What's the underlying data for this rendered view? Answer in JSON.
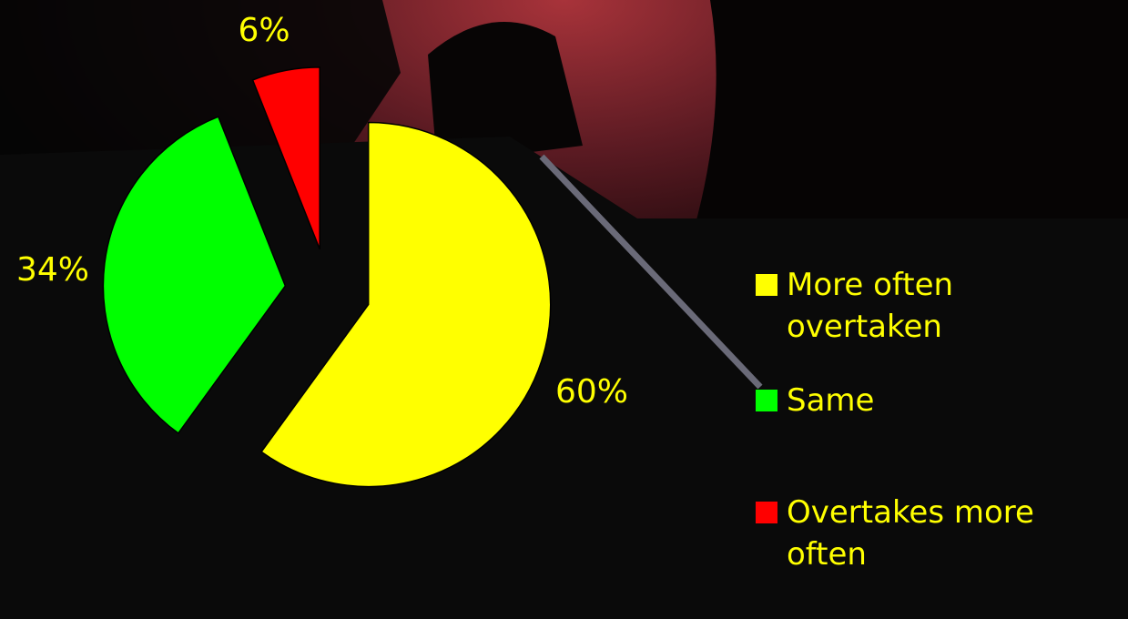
{
  "chart_data": {
    "type": "pie",
    "categories": [
      "More often overtaken",
      "Same",
      "Overtakes more often"
    ],
    "values": [
      60,
      34,
      6
    ],
    "value_labels": [
      "60%",
      "34%",
      "6%"
    ],
    "colors": [
      "#ffff00",
      "#00ff00",
      "#ff0000"
    ]
  }
}
